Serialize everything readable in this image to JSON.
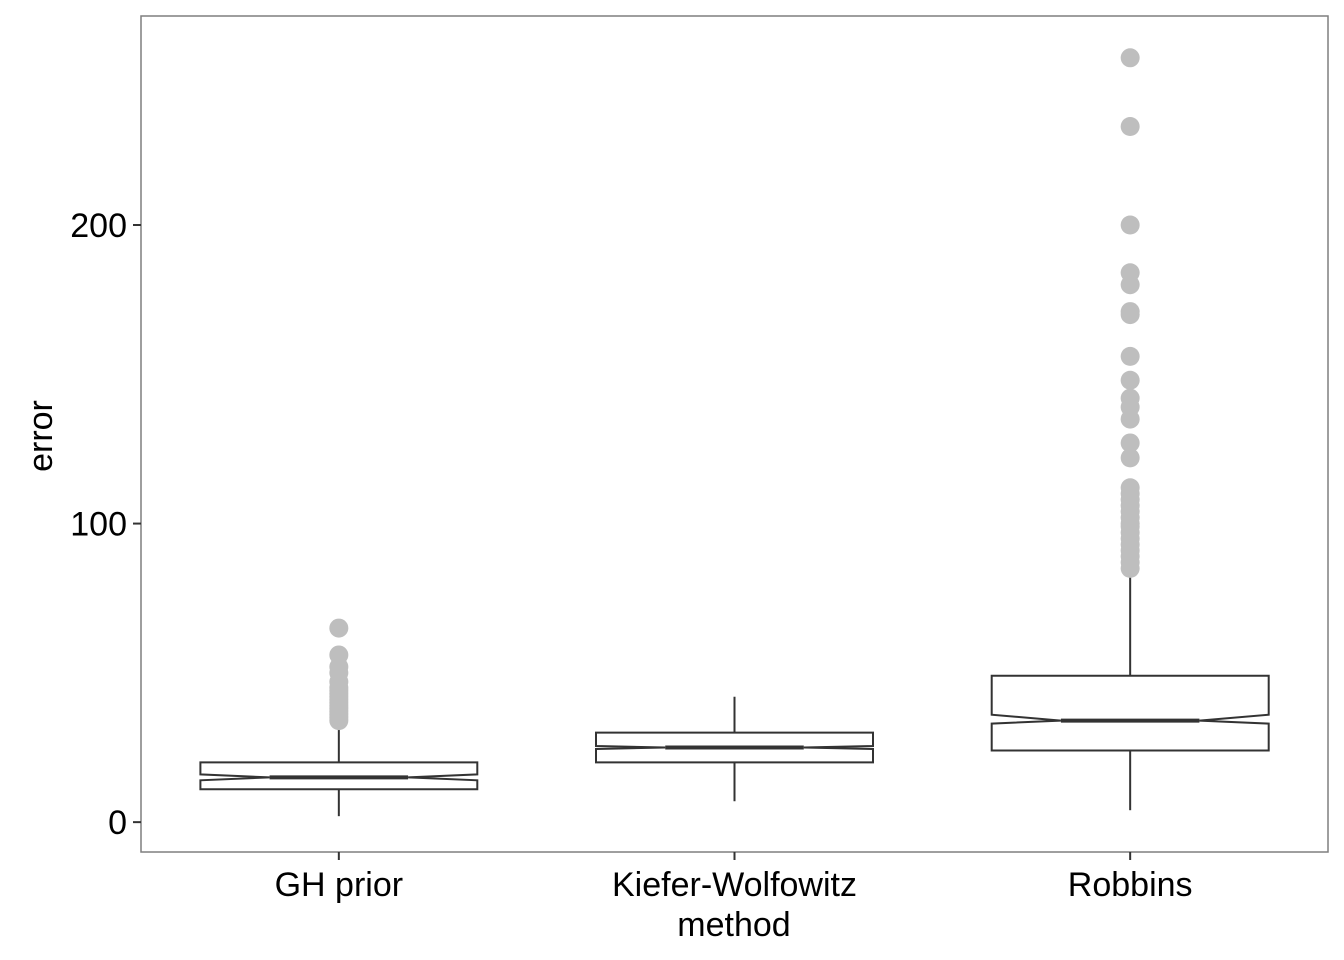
{
  "chart_data": {
    "type": "boxplot",
    "notched": true,
    "xlabel": "method",
    "ylabel": "error",
    "ylim": [
      -10,
      270
    ],
    "yticks": [
      0,
      100,
      200
    ],
    "grid": false,
    "colors": {
      "box_line": "#333333",
      "outlier": "#bebebe",
      "panel_border": "#7f7f7f"
    },
    "categories": [
      "GH prior",
      "Kiefer-Wolfowitz",
      "Robbins"
    ],
    "boxes": [
      {
        "name": "GH prior",
        "min": 2,
        "q1": 11,
        "median": 15,
        "q3": 20,
        "max": 33,
        "notch_low": 14,
        "notch_high": 16,
        "outliers": [
          34,
          35,
          36,
          37,
          38,
          39,
          40,
          41,
          42,
          43,
          44,
          45,
          47,
          50,
          52,
          56,
          65
        ]
      },
      {
        "name": "Kiefer-Wolfowitz",
        "min": 7,
        "q1": 20,
        "median": 25,
        "q3": 30,
        "max": 42,
        "notch_low": 24.5,
        "notch_high": 25.5,
        "outliers": []
      },
      {
        "name": "Robbins",
        "min": 4,
        "q1": 24,
        "median": 34,
        "q3": 49,
        "max": 83,
        "notch_low": 33,
        "notch_high": 36,
        "outliers": [
          85,
          87,
          89,
          91,
          93,
          95,
          97,
          99,
          100,
          102,
          104,
          106,
          108,
          110,
          112,
          122,
          127,
          135,
          139,
          142,
          148,
          156,
          170,
          171,
          180,
          184,
          200,
          233,
          256
        ]
      }
    ]
  }
}
